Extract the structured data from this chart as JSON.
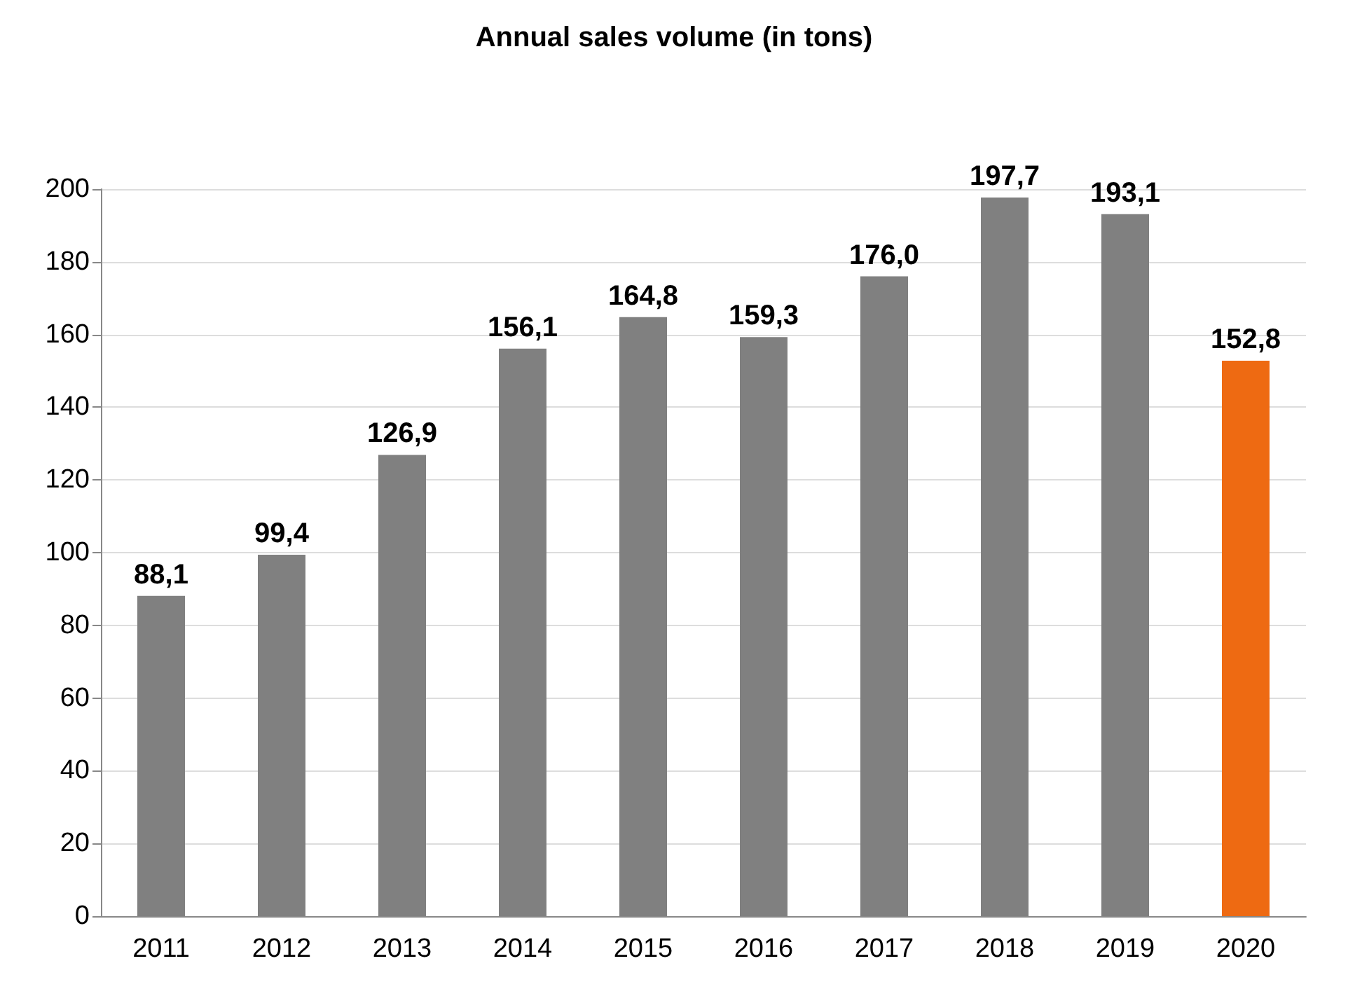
{
  "chart_data": {
    "type": "bar",
    "title": "Annual sales volume (in tons)",
    "categories": [
      "2011",
      "2012",
      "2013",
      "2014",
      "2015",
      "2016",
      "2017",
      "2018",
      "2019",
      "2020"
    ],
    "values": [
      88.1,
      99.4,
      126.9,
      156.1,
      164.8,
      159.3,
      176.0,
      197.7,
      193.1,
      152.8
    ],
    "value_labels": [
      "88,1",
      "99,4",
      "126,9",
      "156,1",
      "164,8",
      "159,3",
      "176,0",
      "197,7",
      "193,1",
      "152,8"
    ],
    "colors": [
      "#808080",
      "#808080",
      "#808080",
      "#808080",
      "#808080",
      "#808080",
      "#808080",
      "#808080",
      "#808080",
      "#ee6a12"
    ],
    "ylim": [
      0,
      200
    ],
    "yticks": [
      0,
      20,
      40,
      60,
      80,
      100,
      120,
      140,
      160,
      180,
      200
    ],
    "grid": "y"
  }
}
